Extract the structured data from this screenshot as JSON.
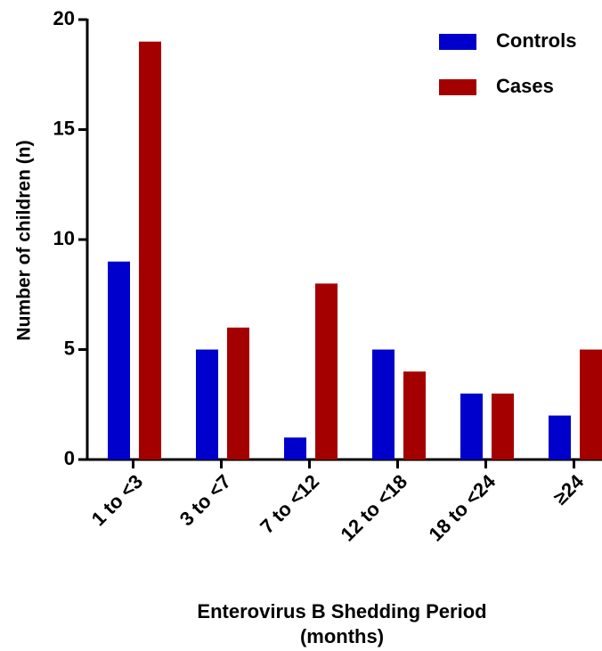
{
  "chart_data": {
    "type": "bar",
    "ylabel": "Number of children (n)",
    "xlabel": [
      "Enterovirus B Shedding Period",
      "(months)"
    ],
    "categories": [
      "1 to <3",
      "3 to <7",
      "7 to <12",
      "12 to <18",
      "18 to <24",
      "≥24"
    ],
    "series": [
      {
        "name": "Controls",
        "color": "#0000cc",
        "values": [
          9,
          5,
          1,
          5,
          3,
          2
        ]
      },
      {
        "name": "Cases",
        "color": "#a50000",
        "values": [
          19,
          6,
          8,
          4,
          3,
          5
        ]
      }
    ],
    "ylim": [
      0,
      20
    ],
    "yticks": [
      0,
      5,
      10,
      15,
      20
    ],
    "legend": "upper right"
  }
}
